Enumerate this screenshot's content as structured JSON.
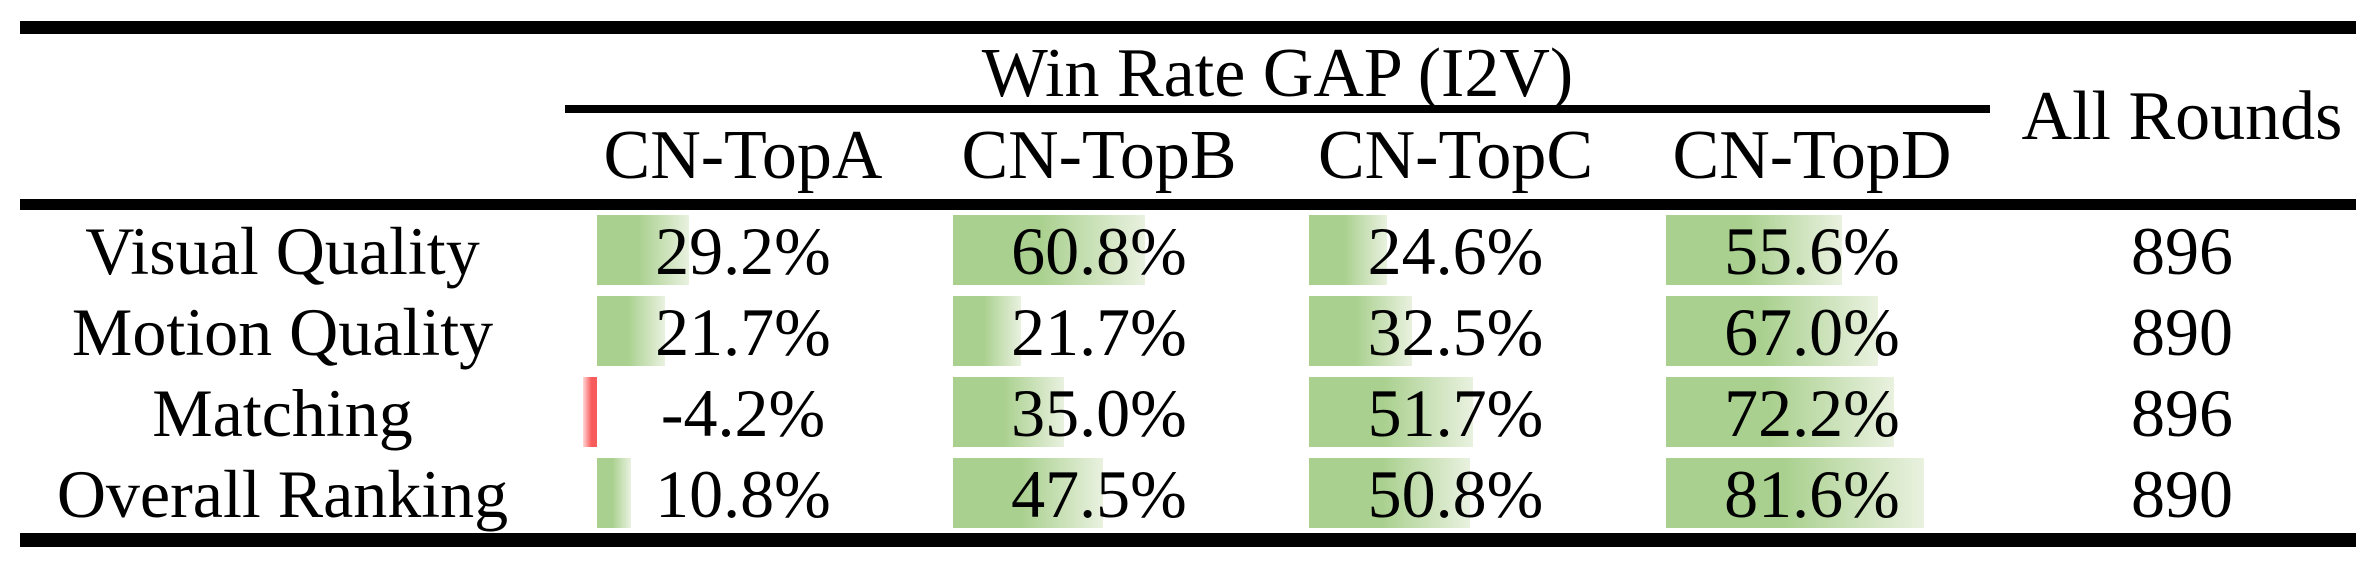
{
  "table": {
    "group_header": "Win Rate GAP (I2V)",
    "all_rounds_header": "All Rounds",
    "columns": [
      "CN-TopA",
      "CN-TopB",
      "CN-TopC",
      "CN-TopD"
    ],
    "rows": [
      {
        "label": "Visual Quality",
        "values": [
          29.2,
          60.8,
          24.6,
          55.6
        ],
        "display": [
          "29.2%",
          "60.8%",
          "24.6%",
          "55.6%"
        ],
        "all_rounds": "896"
      },
      {
        "label": "Motion Quality",
        "values": [
          21.7,
          21.7,
          32.5,
          67.0
        ],
        "display": [
          "21.7%",
          "21.7%",
          "32.5%",
          "67.0%"
        ],
        "all_rounds": "890"
      },
      {
        "label": "Matching",
        "values": [
          -4.2,
          35.0,
          51.7,
          72.2
        ],
        "display": [
          "-4.2%",
          "35.0%",
          "51.7%",
          "72.2%"
        ],
        "all_rounds": "896"
      },
      {
        "label": "Overall Ranking",
        "values": [
          10.8,
          47.5,
          50.8,
          81.6
        ],
        "display": [
          "10.8%",
          "47.5%",
          "50.8%",
          "81.6%"
        ],
        "all_rounds": "890"
      }
    ],
    "bar_style": {
      "positive_color": "#a9d08e",
      "positive_fade": "#e9f1df",
      "negative_color": "#f85b5b",
      "negative_fade": "#ffd9d9",
      "axis_percent": 8.9,
      "scale_percent_per_unit": 0.89
    }
  }
}
